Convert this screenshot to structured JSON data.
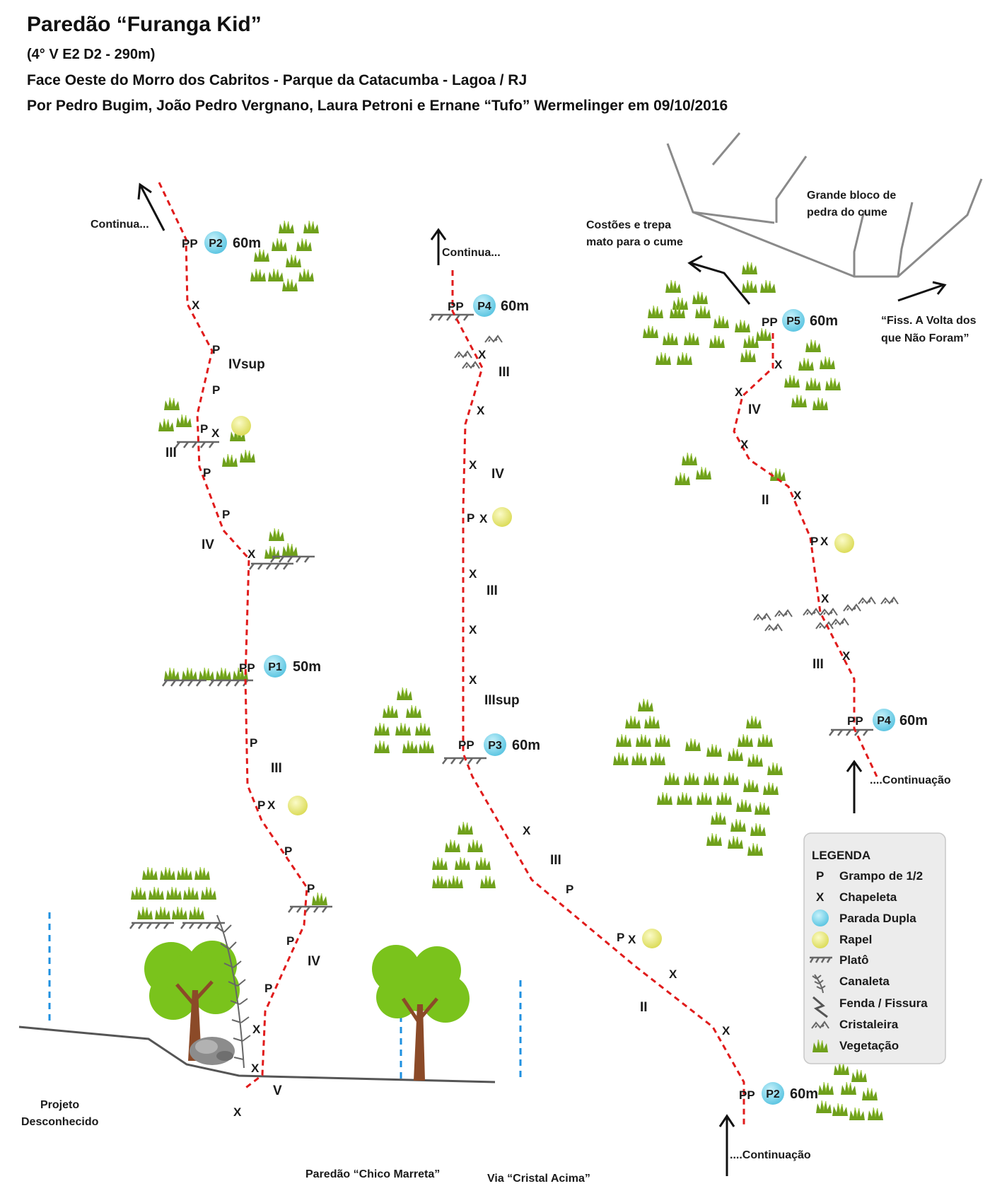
{
  "header": {
    "title": "Paredão “Furanga Kid”",
    "grade": "(4° V E2 D2 - 290m)",
    "location": "Face Oeste do Morro dos Cabritos - Parque da Catacumba - Lagoa / RJ",
    "authors": "Por Pedro Bugim, João Pedro Vergnano, Laura Petroni e Ernane “Tufo” Wermelinger em 09/10/2016"
  },
  "marks": {
    "grampo": "P",
    "chapeleta": "X",
    "parada": "PP"
  },
  "belays": {
    "p1": {
      "name": "P1",
      "dist": "50m"
    },
    "p2": {
      "name": "P2",
      "dist": "60m"
    },
    "p3": {
      "name": "P3",
      "dist": "60m"
    },
    "p4": {
      "name": "P4",
      "dist": "60m"
    },
    "p5": {
      "name": "P5",
      "dist": "60m"
    }
  },
  "grades": {
    "ii": "II",
    "iii": "III",
    "iiisup": "IIIsup",
    "iv": "IV",
    "ivsup": "IVsup",
    "v": "V"
  },
  "labels": {
    "continua": "Continua...",
    "continuacao": "....Continuação",
    "bloco_1": "Grande bloco de",
    "bloco_2": "pedra do cume",
    "costoes_1": "Costões e trepa",
    "costoes_2": "mato para o cume",
    "fiss_1": "“Fiss. A Volta dos",
    "fiss_2": "que Não Foram”",
    "projeto_1": "Projeto",
    "projeto_2": "Desconhecido",
    "chico": "Paredão “Chico Marreta”",
    "cristal": "Via “Cristal Acima”"
  },
  "legend": {
    "title": "LEGENDA",
    "items": [
      {
        "symbol": "P",
        "label": "Grampo de 1/2"
      },
      {
        "symbol": "X",
        "label": "Chapeleta"
      },
      {
        "icon": "parada-dupla-icon",
        "label": "Parada Dupla"
      },
      {
        "icon": "rapel-icon",
        "label": "Rapel"
      },
      {
        "icon": "plato-icon",
        "label": "Platô"
      },
      {
        "icon": "canaleta-icon",
        "label": "Canaleta"
      },
      {
        "icon": "fenda-icon",
        "label": "Fenda / Fissura"
      },
      {
        "icon": "cristaleira-icon",
        "label": "Cristaleira"
      },
      {
        "icon": "vegetacao-icon",
        "label": "Vegetação"
      }
    ]
  },
  "colors": {
    "route": "#e01b1b",
    "belay": "#7ed8ee",
    "rapel": "#f0f08c",
    "vegetation": "#6fa01c",
    "tree": "#7ac31c",
    "trunk": "#8b4a28",
    "other_route": "#1e90e0"
  }
}
